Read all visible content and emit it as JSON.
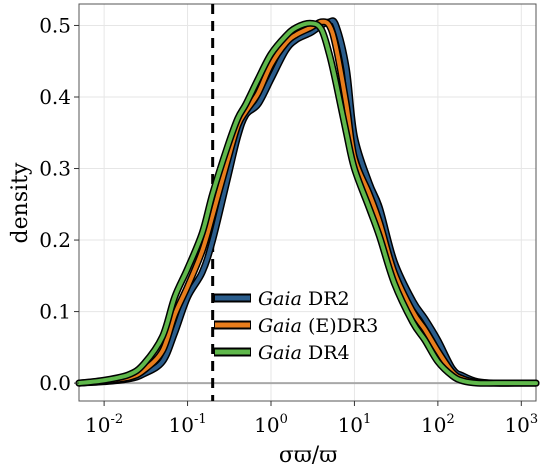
{
  "chart_data": {
    "type": "line",
    "title": "",
    "xlabel": "σϖ/ϖ",
    "ylabel": "density",
    "x_scale": "log10",
    "xlim": [
      0.005,
      1500
    ],
    "ylim": [
      -0.025,
      0.53
    ],
    "x_ticks": [
      {
        "value": 0.01,
        "base": "10",
        "exp": "-2"
      },
      {
        "value": 0.1,
        "base": "10",
        "exp": "-1"
      },
      {
        "value": 1,
        "base": "10",
        "exp": "0"
      },
      {
        "value": 10,
        "base": "10",
        "exp": "1"
      },
      {
        "value": 100,
        "base": "10",
        "exp": "2"
      },
      {
        "value": 1000,
        "base": "10",
        "exp": "3"
      }
    ],
    "y_ticks": [
      "0.0",
      "0.1",
      "0.2",
      "0.3",
      "0.4",
      "0.5"
    ],
    "grid": true,
    "vline": {
      "x": 0.2,
      "style": "dashed"
    },
    "legend_position": "lower-center",
    "series": [
      {
        "label_italic": "Gaia",
        "label_rest": " DR2",
        "color": "#2b5d8c",
        "x": [
          0.005,
          0.01,
          0.02,
          0.03,
          0.05,
          0.07,
          0.1,
          0.15,
          0.2,
          0.3,
          0.4,
          0.5,
          0.7,
          1,
          1.5,
          2,
          3,
          4,
          5,
          6,
          8,
          10,
          15,
          20,
          30,
          50,
          70,
          100,
          150,
          200,
          300,
          500,
          1000,
          1500
        ],
        "y": [
          0.0,
          0.002,
          0.006,
          0.013,
          0.03,
          0.07,
          0.12,
          0.155,
          0.2,
          0.285,
          0.345,
          0.375,
          0.39,
          0.425,
          0.465,
          0.48,
          0.49,
          0.5,
          0.505,
          0.5,
          0.44,
          0.345,
          0.28,
          0.245,
          0.17,
          0.115,
          0.09,
          0.06,
          0.02,
          0.01,
          0.002,
          0.0,
          0.0,
          0.0
        ]
      },
      {
        "label_italic": "Gaia",
        "label_rest": " (E)DR3",
        "color": "#e87d1c",
        "x": [
          0.005,
          0.01,
          0.02,
          0.03,
          0.05,
          0.07,
          0.1,
          0.15,
          0.2,
          0.3,
          0.4,
          0.5,
          0.7,
          1,
          1.5,
          2,
          3,
          4,
          5,
          6,
          8,
          10,
          15,
          20,
          30,
          50,
          70,
          100,
          150,
          200,
          300,
          500,
          1000,
          1500
        ],
        "y": [
          0.0,
          0.003,
          0.008,
          0.018,
          0.045,
          0.095,
          0.135,
          0.185,
          0.235,
          0.31,
          0.36,
          0.38,
          0.405,
          0.445,
          0.475,
          0.487,
          0.497,
          0.505,
          0.5,
          0.47,
          0.39,
          0.315,
          0.265,
          0.225,
          0.155,
          0.1,
          0.075,
          0.045,
          0.015,
          0.006,
          0.001,
          0.0,
          0.0,
          0.0
        ]
      },
      {
        "label_italic": "Gaia",
        "label_rest": " DR4",
        "color": "#5fb84b",
        "x": [
          0.005,
          0.01,
          0.02,
          0.03,
          0.05,
          0.07,
          0.1,
          0.15,
          0.2,
          0.3,
          0.4,
          0.5,
          0.7,
          1,
          1.5,
          2,
          3,
          4,
          5,
          6,
          8,
          10,
          15,
          20,
          30,
          50,
          70,
          100,
          150,
          200,
          300,
          500,
          1000,
          1500
        ],
        "y": [
          0.0,
          0.004,
          0.012,
          0.027,
          0.065,
          0.12,
          0.16,
          0.21,
          0.265,
          0.33,
          0.37,
          0.39,
          0.425,
          0.46,
          0.485,
          0.497,
          0.503,
          0.495,
          0.46,
          0.42,
          0.35,
          0.3,
          0.245,
          0.205,
          0.14,
          0.085,
          0.06,
          0.03,
          0.01,
          0.003,
          0.0,
          0.0,
          0.0,
          0.0
        ]
      }
    ]
  }
}
